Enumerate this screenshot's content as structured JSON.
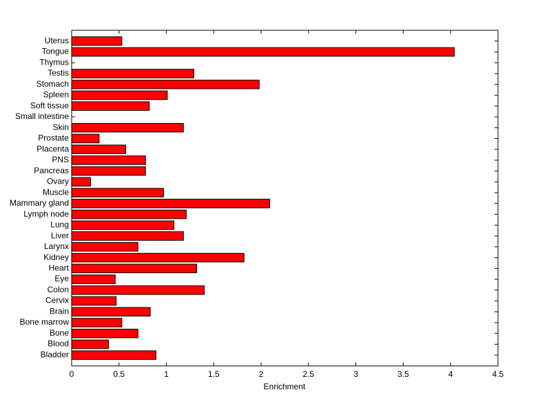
{
  "chart_data": {
    "type": "barh",
    "xlabel": "Enrichment",
    "categories": [
      "Uterus",
      "Tongue",
      "Thymus",
      "Testis",
      "Stomach",
      "Spleen",
      "Soft tissue",
      "Small intestine",
      "Skin",
      "Prostate",
      "Placenta",
      "PNS",
      "Pancreas",
      "Ovary",
      "Muscle",
      "Mammary gland",
      "Lymph node",
      "Lung",
      "Liver",
      "Larynx",
      "Kidney",
      "Heart",
      "Eye",
      "Colon",
      "Cervix",
      "Brain",
      "Bone marrow",
      "Bone",
      "Blood",
      "Bladder"
    ],
    "values": [
      0.53,
      4.04,
      0,
      1.29,
      1.98,
      1.01,
      0.82,
      0,
      1.18,
      0.29,
      0.57,
      0.78,
      0.78,
      0.2,
      0.97,
      2.09,
      1.21,
      1.08,
      1.18,
      0.7,
      1.82,
      1.32,
      0.46,
      1.4,
      0.47,
      0.83,
      0.53,
      0.7,
      0.39,
      0.89
    ],
    "color": "#ff0000",
    "xlim": [
      0,
      4.5
    ],
    "xticks": [
      0,
      0.5,
      1,
      1.5,
      2,
      2.5,
      3,
      3.5,
      4,
      4.5
    ]
  }
}
